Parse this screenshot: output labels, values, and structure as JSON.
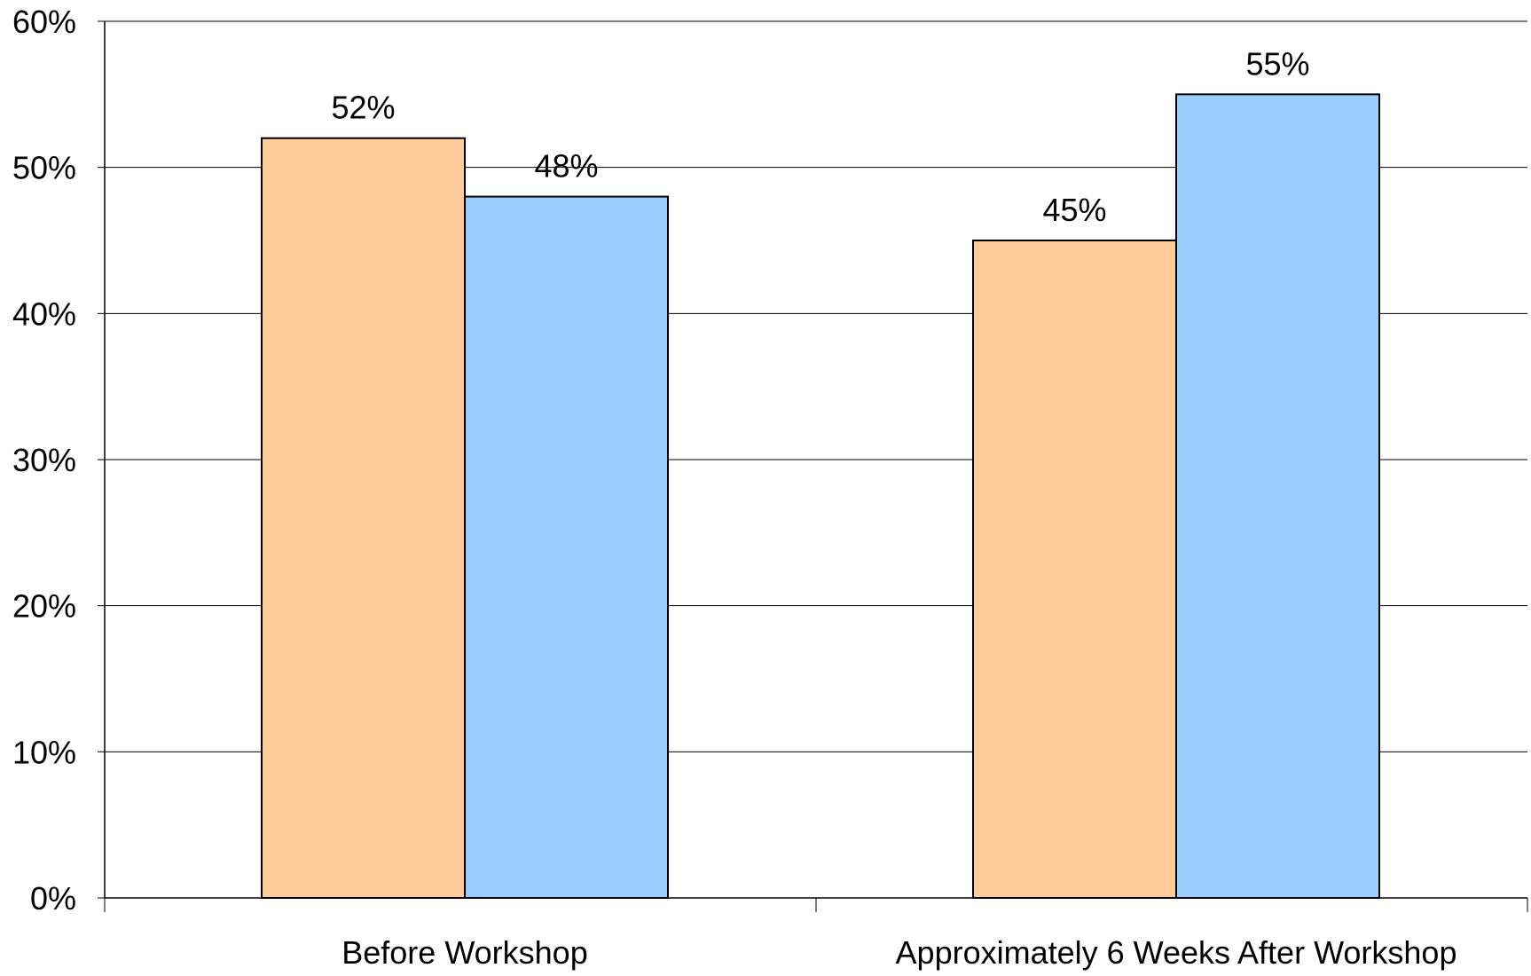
{
  "chart_data": {
    "type": "bar",
    "title": "",
    "xlabel": "",
    "ylabel": "",
    "categories": [
      "Before Workshop",
      "Approximately 6 Weeks After Workshop"
    ],
    "series": [
      {
        "values": [
          52,
          45
        ],
        "labels": [
          "52%",
          "45%"
        ],
        "color": "#FFCC99"
      },
      {
        "values": [
          48,
          55
        ],
        "labels": [
          "48%",
          "55%"
        ],
        "color": "#99CCFF"
      }
    ],
    "ylim": [
      0,
      60
    ],
    "y_ticks": [
      0,
      10,
      20,
      30,
      40,
      50,
      60
    ],
    "y_tick_labels": [
      "0%",
      "10%",
      "20%",
      "30%",
      "40%",
      "50%",
      "60%"
    ],
    "grid": true,
    "legend": "none"
  }
}
